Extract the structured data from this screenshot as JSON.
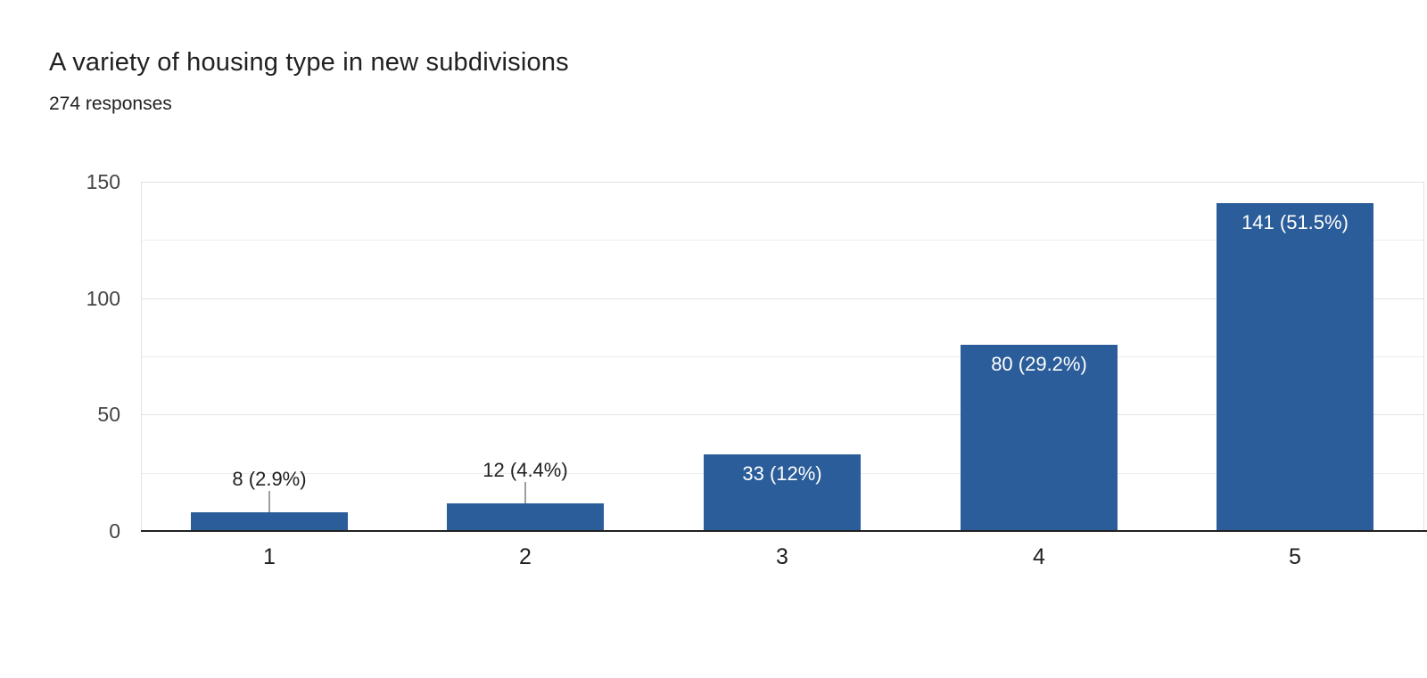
{
  "header": {
    "title": "A variety of housing type in new subdivisions",
    "responses": "274 responses"
  },
  "chart_data": {
    "type": "bar",
    "title": "A variety of housing type in new subdivisions",
    "subtitle": "274 responses",
    "total_responses": 274,
    "categories": [
      "1",
      "2",
      "3",
      "4",
      "5"
    ],
    "values": [
      8,
      12,
      33,
      80,
      141
    ],
    "bar_labels": [
      "8 (2.9%)",
      "12 (4.4%)",
      "33 (12%)",
      "80 (29.2%)",
      "141 (51.5%)"
    ],
    "percentages": [
      2.9,
      4.4,
      12,
      29.2,
      51.5
    ],
    "xlabel": "",
    "ylabel": "",
    "ylim": [
      0,
      150
    ],
    "yticks": [
      0,
      50,
      100,
      150
    ],
    "grid_step": 25,
    "grid": true,
    "legend_position": "none"
  },
  "style": {
    "bar_color": "#2a5d99",
    "baseline_color": "#212121",
    "grid_major_color": "#e2e2e2",
    "grid_minor_color": "#ededed",
    "ytick_color": "#444444",
    "xtick_color": "#212121",
    "outside_label_color": "#212121",
    "inside_label_color": "#ffffff",
    "stem_color": "#9e9e9e",
    "background": "#ffffff"
  },
  "icons": {}
}
